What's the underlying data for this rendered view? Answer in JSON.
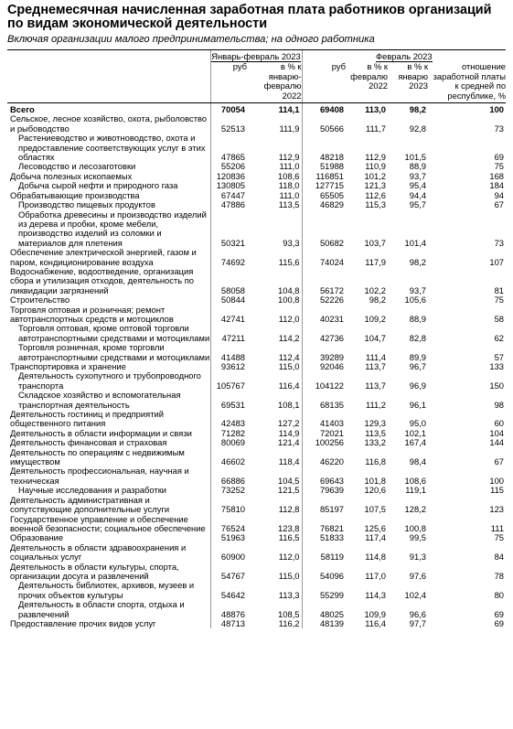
{
  "title": "Среднемесячная начисленная заработная плата работников организаций по видам экономической деятельности",
  "subtitle": "Включая организации малого предпринимательства; на одного работника",
  "header": {
    "period1": "Январь-февраль 2023",
    "period2": "Февраль 2023",
    "cols": [
      "руб",
      "в % к январю-февралю 2022",
      "руб",
      "в % к февралю 2022",
      "в % к январю 2023",
      "отношение заработной платы к средней по республике, %"
    ]
  },
  "rows": [
    {
      "name": "Всего",
      "v": [
        "70054",
        "114,1",
        "69408",
        "113,0",
        "98,2",
        "100"
      ],
      "level": 0,
      "total": true
    },
    {
      "name": "Сельское, лесное хозяйство, охота, рыболовство и рыбоводство",
      "v": [
        "52513",
        "111,9",
        "50566",
        "111,7",
        "92,8",
        "73"
      ],
      "level": 0
    },
    {
      "name": "Растениеводство и животноводство, охота и предоставление соответствующих услуг в этих областях",
      "v": [
        "47865",
        "112,9",
        "48218",
        "112,9",
        "101,5",
        "69"
      ],
      "level": 1
    },
    {
      "name": "Лесоводство и лесозаготовки",
      "v": [
        "55206",
        "111,0",
        "51988",
        "110,9",
        "88,9",
        "75"
      ],
      "level": 1
    },
    {
      "name": "Добыча полезных ископаемых",
      "v": [
        "120836",
        "108,6",
        "116851",
        "101,2",
        "93,7",
        "168"
      ],
      "level": 0
    },
    {
      "name": "Добыча сырой нефти и природного газа",
      "v": [
        "130805",
        "118,0",
        "127715",
        "121,3",
        "95,4",
        "184"
      ],
      "level": 1
    },
    {
      "name": "Обрабатывающие производства",
      "v": [
        "67447",
        "111,0",
        "65505",
        "112,6",
        "94,4",
        "94"
      ],
      "level": 0
    },
    {
      "name": "Производство пищевых продуктов",
      "v": [
        "47886",
        "113,5",
        "46829",
        "115,3",
        "95,7",
        "67"
      ],
      "level": 1
    },
    {
      "name": "Обработка древесины и производство изделий из дерева и пробки, кроме мебели, производство изделий из соломки и материалов для плетения",
      "v": [
        "50321",
        "93,3",
        "50682",
        "103,7",
        "101,4",
        "73"
      ],
      "level": 1
    },
    {
      "name": "Обеспечение электрической энергией, газом и паром, кондиционирование воздуха",
      "v": [
        "74692",
        "115,6",
        "74024",
        "117,9",
        "98,2",
        "107"
      ],
      "level": 0
    },
    {
      "name": "Водоснабжение, водоотведение, организация сбора и утилизация отходов, деятельность по ликвидации загрязнений",
      "v": [
        "58058",
        "104,8",
        "56172",
        "102,2",
        "93,7",
        "81"
      ],
      "level": 0
    },
    {
      "name": "Строительство",
      "v": [
        "50844",
        "100,8",
        "52226",
        "98,2",
        "105,6",
        "75"
      ],
      "level": 0
    },
    {
      "name": "Торговля оптовая и розничная; ремонт автотранспортных средств и мотоциклов",
      "v": [
        "42741",
        "112,0",
        "40231",
        "109,2",
        "88,9",
        "58"
      ],
      "level": 0
    },
    {
      "name": "Торговля оптовая, кроме оптовой торговли автотранспортными средствами и мотоциклами",
      "v": [
        "47211",
        "114,2",
        "42736",
        "104,7",
        "82,8",
        "62"
      ],
      "level": 1
    },
    {
      "name": "Торговля розничная, кроме торговли автотранспортными средствами и мотоциклами",
      "v": [
        "41488",
        "112,4",
        "39289",
        "111,4",
        "89,9",
        "57"
      ],
      "level": 1
    },
    {
      "name": "Транспортировка и хранение",
      "v": [
        "93612",
        "115,0",
        "92046",
        "113,7",
        "96,7",
        "133"
      ],
      "level": 0
    },
    {
      "name": "Деятельность сухопутного и трубопроводного транспорта",
      "v": [
        "105767",
        "116,4",
        "104122",
        "113,7",
        "96,9",
        "150"
      ],
      "level": 1
    },
    {
      "name": "Складское хозяйство и вспомогательная транспортная деятельность",
      "v": [
        "69531",
        "108,1",
        "68135",
        "111,2",
        "96,1",
        "98"
      ],
      "level": 1
    },
    {
      "name": "Деятельность гостиниц и предприятий общественного питания",
      "v": [
        "42483",
        "127,2",
        "41403",
        "129,3",
        "95,0",
        "60"
      ],
      "level": 0
    },
    {
      "name": "Деятельность в области информации и связи",
      "v": [
        "71282",
        "114,9",
        "72021",
        "113,5",
        "102,1",
        "104"
      ],
      "level": 0
    },
    {
      "name": "Деятельность финансовая и страховая",
      "v": [
        "80069",
        "121,4",
        "100256",
        "133,2",
        "167,4",
        "144"
      ],
      "level": 0
    },
    {
      "name": "Деятельность по операциям с недвижимым имуществом",
      "v": [
        "46602",
        "118,4",
        "46220",
        "116,8",
        "98,4",
        "67"
      ],
      "level": 0
    },
    {
      "name": "Деятельность профессиональная, научная и техническая",
      "v": [
        "66886",
        "104,5",
        "69643",
        "101,8",
        "108,6",
        "100"
      ],
      "level": 0
    },
    {
      "name": "Научные исследования и разработки",
      "v": [
        "73252",
        "121,5",
        "79639",
        "120,6",
        "119,1",
        "115"
      ],
      "level": 1
    },
    {
      "name": "Деятельность административная и сопутствующие дополнительные услуги",
      "v": [
        "75810",
        "112,8",
        "85197",
        "107,5",
        "128,2",
        "123"
      ],
      "level": 0
    },
    {
      "name": "Государственное управление и обеспечение военной безопасности; социальное обеспечение",
      "v": [
        "76524",
        "123,8",
        "76821",
        "125,6",
        "100,8",
        "111"
      ],
      "level": 0
    },
    {
      "name": "Образование",
      "v": [
        "51963",
        "116,5",
        "51833",
        "117,4",
        "99,5",
        "75"
      ],
      "level": 0
    },
    {
      "name": "Деятельность в области здравоохранения и социальных услуг",
      "v": [
        "60900",
        "112,0",
        "58119",
        "114,8",
        "91,3",
        "84"
      ],
      "level": 0
    },
    {
      "name": "Деятельность в области культуры, спорта, организации досуга и развлечений",
      "v": [
        "54767",
        "115,0",
        "54096",
        "117,0",
        "97,6",
        "78"
      ],
      "level": 0
    },
    {
      "name": "Деятельность библиотек, архивов, музеев и прочих объектов культуры",
      "v": [
        "54642",
        "113,3",
        "55299",
        "114,3",
        "102,4",
        "80"
      ],
      "level": 1
    },
    {
      "name": "Деятельность в области спорта, отдыха и развлечений",
      "v": [
        "48876",
        "108,5",
        "48025",
        "109,9",
        "96,6",
        "69"
      ],
      "level": 1
    },
    {
      "name": "Предоставление прочих видов услуг",
      "v": [
        "48713",
        "116,2",
        "48139",
        "116,4",
        "97,7",
        "69"
      ],
      "level": 0
    }
  ]
}
